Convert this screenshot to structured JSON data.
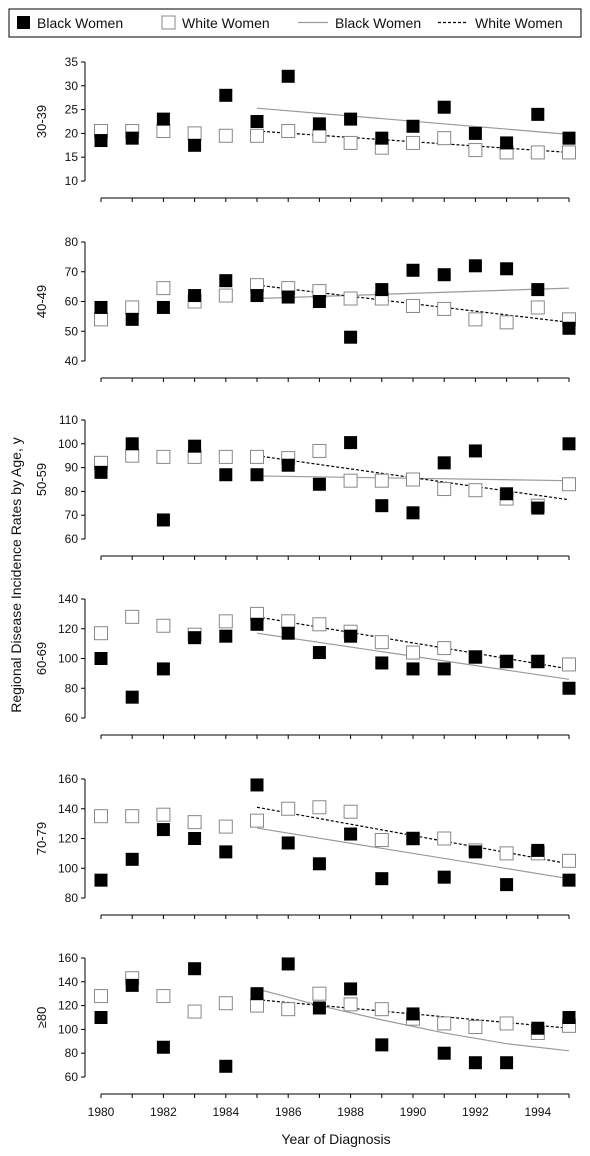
{
  "chart_data": {
    "type": "scatter",
    "xlabel": "Year of Diagnosis",
    "ylabel": "Regional Disease Incidence Rates by Age, y",
    "x_ticks": [
      1980,
      1982,
      1984,
      1986,
      1988,
      1990,
      1992,
      1994
    ],
    "xlim": [
      1980,
      1995
    ],
    "legend": {
      "placement": "top",
      "entries": [
        {
          "label": "Black Women",
          "marker": "filled-square"
        },
        {
          "label": "White Women",
          "marker": "open-square"
        },
        {
          "label": "Black Women",
          "marker": "solid-line"
        },
        {
          "label": "White Women",
          "marker": "dotted-line"
        }
      ]
    },
    "panels": [
      {
        "label": "30-39",
        "ylim": [
          10,
          35
        ],
        "yticks": [
          10,
          15,
          20,
          25,
          30,
          35
        ],
        "black_points": [
          [
            1980,
            18.5
          ],
          [
            1981,
            19
          ],
          [
            1982,
            23
          ],
          [
            1983,
            17.5
          ],
          [
            1984,
            28
          ],
          [
            1985,
            22.5
          ],
          [
            1986,
            32
          ],
          [
            1987,
            22
          ],
          [
            1988,
            23
          ],
          [
            1989,
            19
          ],
          [
            1990,
            21.5
          ],
          [
            1991,
            25.5
          ],
          [
            1992,
            20
          ],
          [
            1993,
            18
          ],
          [
            1994,
            24
          ],
          [
            1995,
            19
          ]
        ],
        "white_points": [
          [
            1980,
            20.5
          ],
          [
            1981,
            20.5
          ],
          [
            1982,
            20.5
          ],
          [
            1983,
            20
          ],
          [
            1984,
            19.5
          ],
          [
            1985,
            19.5
          ],
          [
            1986,
            20.5
          ],
          [
            1987,
            19.5
          ],
          [
            1988,
            18
          ],
          [
            1989,
            17
          ],
          [
            1990,
            18
          ],
          [
            1991,
            19
          ],
          [
            1992,
            16.5
          ],
          [
            1993,
            16
          ],
          [
            1994,
            16
          ],
          [
            1995,
            16
          ]
        ],
        "black_trend": [
          [
            1985,
            25.3
          ],
          [
            1995,
            19.8
          ]
        ],
        "white_trend": [
          [
            1985,
            20.5
          ],
          [
            1995,
            16
          ]
        ]
      },
      {
        "label": "40-49",
        "ylim": [
          40,
          80
        ],
        "yticks": [
          40,
          50,
          60,
          70,
          80
        ],
        "black_points": [
          [
            1980,
            58
          ],
          [
            1981,
            54
          ],
          [
            1982,
            58
          ],
          [
            1983,
            62
          ],
          [
            1984,
            67
          ],
          [
            1985,
            62
          ],
          [
            1986,
            61.5
          ],
          [
            1987,
            60
          ],
          [
            1988,
            48
          ],
          [
            1989,
            64
          ],
          [
            1990,
            70.5
          ],
          [
            1991,
            69
          ],
          [
            1992,
            72
          ],
          [
            1993,
            71
          ],
          [
            1994,
            64
          ],
          [
            1995,
            51
          ]
        ],
        "white_points": [
          [
            1980,
            54
          ],
          [
            1981,
            58
          ],
          [
            1982,
            64.5
          ],
          [
            1983,
            60
          ],
          [
            1984,
            62
          ],
          [
            1985,
            65.5
          ],
          [
            1986,
            64.5
          ],
          [
            1987,
            63.5
          ],
          [
            1988,
            61
          ],
          [
            1989,
            61
          ],
          [
            1990,
            58.5
          ],
          [
            1991,
            57.5
          ],
          [
            1992,
            54
          ],
          [
            1993,
            53
          ],
          [
            1994,
            58
          ],
          [
            1995,
            54
          ]
        ],
        "black_trend": [
          [
            1985,
            61
          ],
          [
            1995,
            64.5
          ]
        ],
        "white_trend": [
          [
            1985,
            65.5
          ],
          [
            1995,
            53
          ]
        ]
      },
      {
        "label": "50-59",
        "ylim": [
          60,
          110
        ],
        "yticks": [
          60,
          70,
          80,
          90,
          100,
          110
        ],
        "black_points": [
          [
            1980,
            88
          ],
          [
            1981,
            100
          ],
          [
            1982,
            68
          ],
          [
            1983,
            99
          ],
          [
            1984,
            87
          ],
          [
            1985,
            87
          ],
          [
            1986,
            91
          ],
          [
            1987,
            83
          ],
          [
            1988,
            100.5
          ],
          [
            1989,
            74
          ],
          [
            1990,
            71
          ],
          [
            1991,
            92
          ],
          [
            1992,
            97
          ],
          [
            1993,
            79
          ],
          [
            1994,
            73
          ],
          [
            1995,
            100
          ]
        ],
        "white_points": [
          [
            1980,
            92
          ],
          [
            1981,
            95
          ],
          [
            1982,
            94.5
          ],
          [
            1983,
            94.5
          ],
          [
            1984,
            94.5
          ],
          [
            1985,
            94.5
          ],
          [
            1986,
            94
          ],
          [
            1987,
            97
          ],
          [
            1988,
            84.5
          ],
          [
            1989,
            84.5
          ],
          [
            1990,
            85
          ],
          [
            1991,
            81
          ],
          [
            1992,
            80.5
          ],
          [
            1993,
            77
          ],
          [
            1994,
            74
          ],
          [
            1995,
            83
          ]
        ],
        "black_trend": [
          [
            1985,
            86.5
          ],
          [
            1995,
            84.5
          ]
        ],
        "white_trend": [
          [
            1985,
            95
          ],
          [
            1995,
            76.5
          ]
        ]
      },
      {
        "label": "60-69",
        "ylim": [
          60,
          140
        ],
        "yticks": [
          60,
          80,
          100,
          120,
          140
        ],
        "black_points": [
          [
            1980,
            100
          ],
          [
            1981,
            74
          ],
          [
            1982,
            93
          ],
          [
            1983,
            114
          ],
          [
            1984,
            115
          ],
          [
            1985,
            123
          ],
          [
            1986,
            117
          ],
          [
            1987,
            104
          ],
          [
            1988,
            115
          ],
          [
            1989,
            97
          ],
          [
            1990,
            93
          ],
          [
            1991,
            93
          ],
          [
            1992,
            101
          ],
          [
            1993,
            98
          ],
          [
            1994,
            98
          ],
          [
            1995,
            80
          ]
        ],
        "white_points": [
          [
            1980,
            117
          ],
          [
            1981,
            128
          ],
          [
            1982,
            122
          ],
          [
            1983,
            116
          ],
          [
            1984,
            125
          ],
          [
            1985,
            130
          ],
          [
            1986,
            125
          ],
          [
            1987,
            123
          ],
          [
            1988,
            118
          ],
          [
            1989,
            111
          ],
          [
            1990,
            104
          ],
          [
            1991,
            107
          ],
          [
            1992,
            101
          ],
          [
            1993,
            98
          ],
          [
            1994,
            98
          ],
          [
            1995,
            96
          ]
        ],
        "black_trend": [
          [
            1985,
            117
          ],
          [
            1995,
            86
          ]
        ],
        "white_trend": [
          [
            1985,
            128
          ],
          [
            1995,
            93
          ]
        ]
      },
      {
        "label": "70-79",
        "ylim": [
          80,
          160
        ],
        "yticks": [
          80,
          100,
          120,
          140,
          160
        ],
        "black_points": [
          [
            1980,
            92
          ],
          [
            1981,
            106
          ],
          [
            1982,
            126
          ],
          [
            1983,
            120
          ],
          [
            1984,
            111
          ],
          [
            1985,
            156
          ],
          [
            1986,
            117
          ],
          [
            1987,
            103
          ],
          [
            1988,
            123
          ],
          [
            1989,
            93
          ],
          [
            1990,
            120
          ],
          [
            1991,
            94
          ],
          [
            1992,
            111
          ],
          [
            1993,
            89
          ],
          [
            1994,
            112
          ],
          [
            1995,
            92
          ]
        ],
        "white_points": [
          [
            1980,
            135
          ],
          [
            1981,
            135
          ],
          [
            1982,
            136
          ],
          [
            1983,
            131
          ],
          [
            1984,
            128
          ],
          [
            1985,
            132
          ],
          [
            1986,
            140
          ],
          [
            1987,
            141
          ],
          [
            1988,
            138
          ],
          [
            1989,
            119
          ],
          [
            1990,
            120
          ],
          [
            1991,
            120
          ],
          [
            1992,
            112
          ],
          [
            1993,
            110
          ],
          [
            1994,
            110
          ],
          [
            1995,
            105
          ]
        ],
        "black_trend": [
          [
            1985,
            127
          ],
          [
            1995,
            93
          ]
        ],
        "white_trend": [
          [
            1985,
            141
          ],
          [
            1995,
            103
          ]
        ]
      },
      {
        "label": "≥80",
        "ylim": [
          60,
          160
        ],
        "yticks": [
          60,
          80,
          100,
          120,
          140,
          160
        ],
        "black_points": [
          [
            1980,
            110
          ],
          [
            1981,
            137
          ],
          [
            1982,
            85
          ],
          [
            1983,
            151
          ],
          [
            1984,
            69
          ],
          [
            1985,
            130
          ],
          [
            1986,
            155
          ],
          [
            1987,
            118
          ],
          [
            1988,
            134
          ],
          [
            1989,
            87
          ],
          [
            1990,
            113
          ],
          [
            1991,
            80
          ],
          [
            1992,
            72
          ],
          [
            1993,
            72
          ],
          [
            1994,
            101
          ],
          [
            1995,
            110
          ]
        ],
        "white_points": [
          [
            1980,
            128
          ],
          [
            1981,
            143
          ],
          [
            1982,
            128
          ],
          [
            1983,
            115
          ],
          [
            1984,
            122
          ],
          [
            1985,
            120
          ],
          [
            1986,
            117
          ],
          [
            1987,
            130
          ],
          [
            1988,
            121
          ],
          [
            1989,
            117
          ],
          [
            1990,
            109
          ],
          [
            1991,
            105
          ],
          [
            1992,
            102
          ],
          [
            1993,
            105
          ],
          [
            1994,
            97
          ],
          [
            1995,
            103
          ]
        ],
        "black_trend": [
          [
            1985,
            134
          ],
          [
            1987,
            120
          ],
          [
            1989,
            108
          ],
          [
            1991,
            97
          ],
          [
            1993,
            88
          ],
          [
            1995,
            82
          ]
        ],
        "white_trend": [
          [
            1985,
            125
          ],
          [
            1995,
            101
          ]
        ]
      }
    ]
  }
}
